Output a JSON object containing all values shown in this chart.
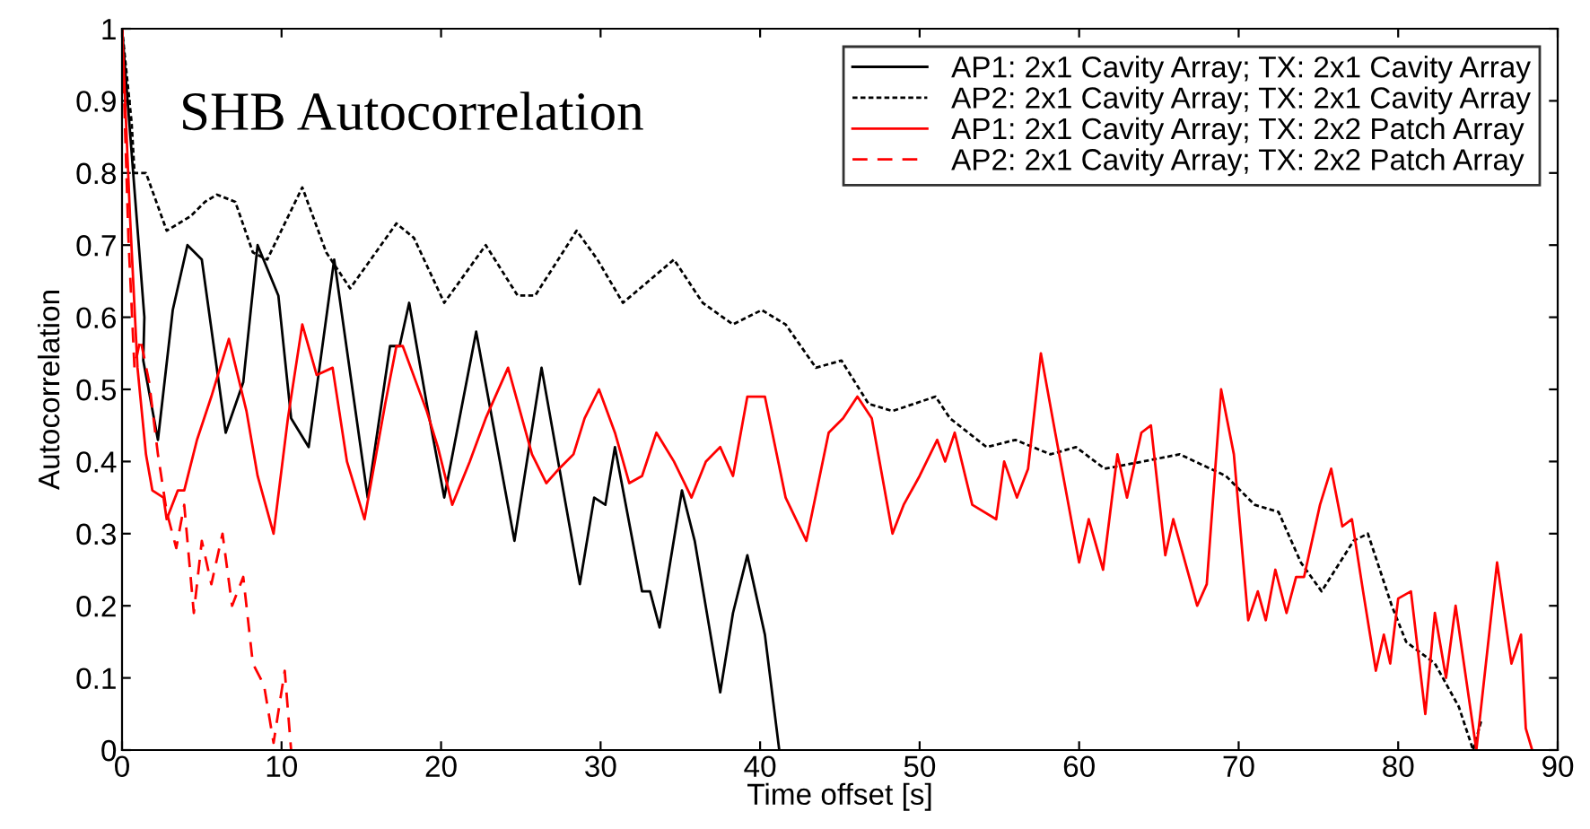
{
  "chart_data": {
    "type": "line",
    "title": "SHB Autocorrelation",
    "xlabel": "Time offset [s]",
    "ylabel": "Autocorrelation",
    "xlim": [
      0,
      90
    ],
    "ylim": [
      0,
      1
    ],
    "xticks": [
      0,
      10,
      20,
      30,
      40,
      50,
      60,
      70,
      80,
      90
    ],
    "yticks": [
      0,
      0.1,
      0.2,
      0.3,
      0.4,
      0.5,
      0.6,
      0.7,
      0.8,
      0.9,
      1
    ],
    "grid": false,
    "legend": "top right",
    "marker": "none",
    "series": [
      {
        "name": "AP1: 2x1 Cavity Array; TX: 2x1 Cavity Array",
        "color": "#000000",
        "line_style": "solid",
        "x": [
          0,
          1.4,
          1.33,
          2.25,
          3.18,
          4.1,
          5.0,
          6.5,
          7.6,
          8.5,
          9.8,
          10.6,
          11.7,
          13.3,
          15.4,
          16.8,
          17.4,
          18.0,
          19.1,
          20.2,
          22.2,
          24.6,
          26.3,
          28.7,
          29.6,
          30.3,
          30.9,
          32.6,
          33.1,
          33.7,
          35.1,
          35.9,
          37.5,
          38.3,
          39.2,
          40.3,
          41.2
        ],
        "values": [
          1.0,
          0.6,
          0.54,
          0.43,
          0.61,
          0.7,
          0.68,
          0.44,
          0.51,
          0.7,
          0.63,
          0.46,
          0.42,
          0.68,
          0.35,
          0.56,
          0.56,
          0.62,
          0.48,
          0.35,
          0.58,
          0.29,
          0.53,
          0.23,
          0.35,
          0.34,
          0.42,
          0.22,
          0.22,
          0.17,
          0.36,
          0.29,
          0.08,
          0.19,
          0.27,
          0.16,
          0.0
        ]
      },
      {
        "name": "AP2: 2x1 Cavity Array; TX: 2x1 Cavity Array",
        "color": "#000000",
        "line_style": "dotted",
        "x": [
          0,
          0.6,
          0.78,
          1.5,
          2.8,
          4.3,
          5.2,
          5.95,
          7.1,
          8.2,
          9.1,
          11.3,
          12.8,
          14.3,
          17.2,
          18.3,
          20.2,
          22.8,
          24.8,
          25.9,
          28.5,
          29.8,
          31.4,
          34.6,
          36.4,
          38.3,
          40.1,
          41.6,
          43.5,
          45.1,
          46.8,
          48.3,
          51.0,
          51.9,
          54.2,
          56.0,
          58.2,
          59.8,
          61.6,
          64.0,
          66.3,
          69.2,
          71.0,
          72.5,
          73.9,
          75.2,
          77.2,
          78.1,
          79.6,
          80.5,
          82.3,
          83.8,
          84.7,
          85.2
        ],
        "values": [
          1.0,
          0.87,
          0.8,
          0.8,
          0.72,
          0.74,
          0.76,
          0.77,
          0.76,
          0.69,
          0.68,
          0.78,
          0.69,
          0.64,
          0.73,
          0.71,
          0.62,
          0.7,
          0.63,
          0.63,
          0.72,
          0.68,
          0.62,
          0.68,
          0.62,
          0.59,
          0.61,
          0.59,
          0.53,
          0.54,
          0.48,
          0.47,
          0.49,
          0.46,
          0.42,
          0.43,
          0.41,
          0.42,
          0.39,
          0.4,
          0.41,
          0.38,
          0.34,
          0.33,
          0.26,
          0.22,
          0.29,
          0.3,
          0.2,
          0.15,
          0.12,
          0.06,
          0.0,
          0.04
        ]
      },
      {
        "name": "AP1: 2x1 Cavity Array; TX: 2x2 Patch Array",
        "color": "#ff0000",
        "line_style": "solid",
        "x": [
          0,
          0.5,
          0.97,
          1.5,
          1.9,
          2.6,
          2.8,
          3.5,
          3.9,
          4.7,
          5.6,
          6.7,
          7.8,
          8.5,
          9.5,
          10.4,
          11.3,
          12.2,
          13.2,
          14.1,
          15.2,
          16.5,
          17.2,
          17.6,
          19.1,
          19.8,
          20.7,
          21.8,
          22.8,
          24.2,
          25.7,
          26.6,
          27.4,
          28.3,
          29.0,
          29.9,
          30.9,
          31.8,
          32.6,
          33.5,
          34.6,
          35.7,
          36.6,
          37.5,
          38.3,
          39.2,
          40.3,
          41.6,
          42.9,
          44.3,
          45.2,
          46.1,
          47.0,
          48.3,
          49.0,
          50.0,
          51.1,
          51.6,
          52.2,
          53.3,
          54.8,
          55.3,
          56.1,
          56.8,
          57.6,
          58.5,
          60.0,
          60.6,
          61.5,
          62.4,
          63.0,
          63.9,
          64.5,
          65.4,
          65.9,
          67.4,
          68.0,
          68.9,
          69.7,
          70.6,
          71.2,
          71.7,
          72.3,
          73.0,
          73.6,
          74.1,
          75.1,
          75.8,
          76.5,
          77.1,
          77.8,
          78.6,
          79.1,
          79.5,
          80.0,
          80.8,
          81.7,
          82.3,
          83.0,
          83.6,
          84.9,
          86.2,
          87.1,
          87.7,
          88.0,
          88.4
        ],
        "values": [
          1.0,
          0.74,
          0.53,
          0.41,
          0.36,
          0.35,
          0.32,
          0.36,
          0.36,
          0.43,
          0.49,
          0.57,
          0.47,
          0.38,
          0.3,
          0.46,
          0.59,
          0.52,
          0.53,
          0.4,
          0.32,
          0.48,
          0.56,
          0.56,
          0.47,
          0.42,
          0.34,
          0.4,
          0.46,
          0.53,
          0.41,
          0.37,
          0.39,
          0.41,
          0.46,
          0.5,
          0.44,
          0.37,
          0.38,
          0.44,
          0.4,
          0.35,
          0.4,
          0.42,
          0.38,
          0.49,
          0.49,
          0.35,
          0.29,
          0.44,
          0.46,
          0.49,
          0.46,
          0.3,
          0.34,
          0.38,
          0.43,
          0.4,
          0.44,
          0.34,
          0.32,
          0.4,
          0.35,
          0.39,
          0.55,
          0.44,
          0.26,
          0.32,
          0.25,
          0.41,
          0.35,
          0.44,
          0.45,
          0.27,
          0.32,
          0.2,
          0.23,
          0.5,
          0.41,
          0.18,
          0.22,
          0.18,
          0.25,
          0.19,
          0.24,
          0.24,
          0.34,
          0.39,
          0.31,
          0.32,
          0.22,
          0.11,
          0.16,
          0.12,
          0.21,
          0.22,
          0.05,
          0.19,
          0.1,
          0.2,
          0.0,
          0.26,
          0.12,
          0.16,
          0.03,
          0.0
        ]
      },
      {
        "name": "AP2: 2x1 Cavity Array; TX: 2x2 Patch Array",
        "color": "#ff0000",
        "line_style": "dashed",
        "x": [
          0,
          0.4,
          0.78,
          1.15,
          1.7,
          2.25,
          2.8,
          3.4,
          3.9,
          4.5,
          5.0,
          5.6,
          6.3,
          6.9,
          7.6,
          8.2,
          8.9,
          9.5,
          10.2,
          10.6
        ],
        "values": [
          1.0,
          0.71,
          0.53,
          0.57,
          0.51,
          0.41,
          0.33,
          0.28,
          0.34,
          0.19,
          0.29,
          0.23,
          0.3,
          0.2,
          0.24,
          0.12,
          0.09,
          0.01,
          0.11,
          0.0
        ]
      }
    ]
  }
}
